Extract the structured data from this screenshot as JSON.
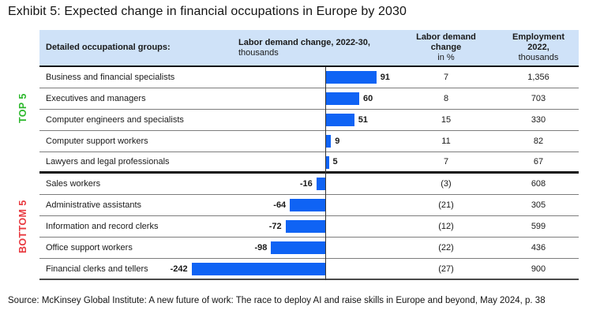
{
  "title": "Exhibit 5: Expected change in financial occupations in Europe by 2030",
  "source": "Source: McKinsey Global Institute: A new future of work: The race to deploy AI and raise skills in Europe and beyond, May 2024, p. 38",
  "colors": {
    "bar": "#0f63f4",
    "header_bg": "#cfe2f8",
    "top5": "#2db82d",
    "bottom5": "#e8393f"
  },
  "group_labels": {
    "top": "TOP 5",
    "bottom": "BOTTOM 5"
  },
  "table": {
    "top_group_count": 5,
    "headers": {
      "occupation": "Detailed occupational groups:",
      "change": {
        "line1": "Labor demand change, 2022-30,",
        "line2": "thousands"
      },
      "pct": {
        "line1": "Labor demand change",
        "line2": "in %"
      },
      "employment": {
        "line1": "Employment 2022,",
        "line2": "thousands"
      }
    },
    "rows": [
      {
        "label": "Business and financial specialists",
        "value": 91,
        "value_label": "91",
        "pct": "7",
        "employment": "1,356"
      },
      {
        "label": "Executives and managers",
        "value": 60,
        "value_label": "60",
        "pct": "8",
        "employment": "703"
      },
      {
        "label": "Computer engineers and specialists",
        "value": 51,
        "value_label": "51",
        "pct": "15",
        "employment": "330"
      },
      {
        "label": "Computer support workers",
        "value": 9,
        "value_label": "9",
        "pct": "11",
        "employment": "82"
      },
      {
        "label": "Lawyers and legal professionals",
        "value": 5,
        "value_label": "5",
        "pct": "7",
        "employment": "67"
      },
      {
        "label": "Sales workers",
        "value": -16,
        "value_label": "-16",
        "pct": "(3)",
        "employment": "608"
      },
      {
        "label": "Administrative assistants",
        "value": -64,
        "value_label": "-64",
        "pct": "(21)",
        "employment": "305"
      },
      {
        "label": "Information and record clerks",
        "value": -72,
        "value_label": "-72",
        "pct": "(12)",
        "employment": "599"
      },
      {
        "label": "Office support workers",
        "value": -98,
        "value_label": "-98",
        "pct": "(22)",
        "employment": "436"
      },
      {
        "label": "Financial clerks and tellers",
        "value": -242,
        "value_label": "-242",
        "pct": "(27)",
        "employment": "900"
      }
    ]
  },
  "chart_data": {
    "type": "bar",
    "orientation": "horizontal",
    "title": "Exhibit 5: Expected change in financial occupations in Europe by 2030",
    "categories": [
      "Business and financial specialists",
      "Executives and managers",
      "Computer engineers and specialists",
      "Computer support workers",
      "Lawyers and legal professionals",
      "Sales workers",
      "Administrative assistants",
      "Information and record clerks",
      "Office support workers",
      "Financial clerks and tellers"
    ],
    "series": [
      {
        "name": "Labor demand change, 2022-30, thousands",
        "values": [
          91,
          60,
          51,
          9,
          5,
          -16,
          -64,
          -72,
          -98,
          -242
        ]
      },
      {
        "name": "Labor demand change in %",
        "values": [
          7,
          8,
          15,
          11,
          7,
          -3,
          -21,
          -12,
          -22,
          -27
        ]
      },
      {
        "name": "Employment 2022, thousands",
        "values": [
          1356,
          703,
          330,
          82,
          67,
          608,
          305,
          599,
          436,
          900
        ]
      }
    ],
    "groups": [
      {
        "name": "TOP 5",
        "rows": [
          0,
          1,
          2,
          3,
          4
        ]
      },
      {
        "name": "BOTTOM 5",
        "rows": [
          5,
          6,
          7,
          8,
          9
        ]
      }
    ],
    "bar_color": "#0f63f4",
    "xlim": [
      -260,
      110
    ],
    "grid": false,
    "legend_position": "none",
    "value_labels": true
  }
}
